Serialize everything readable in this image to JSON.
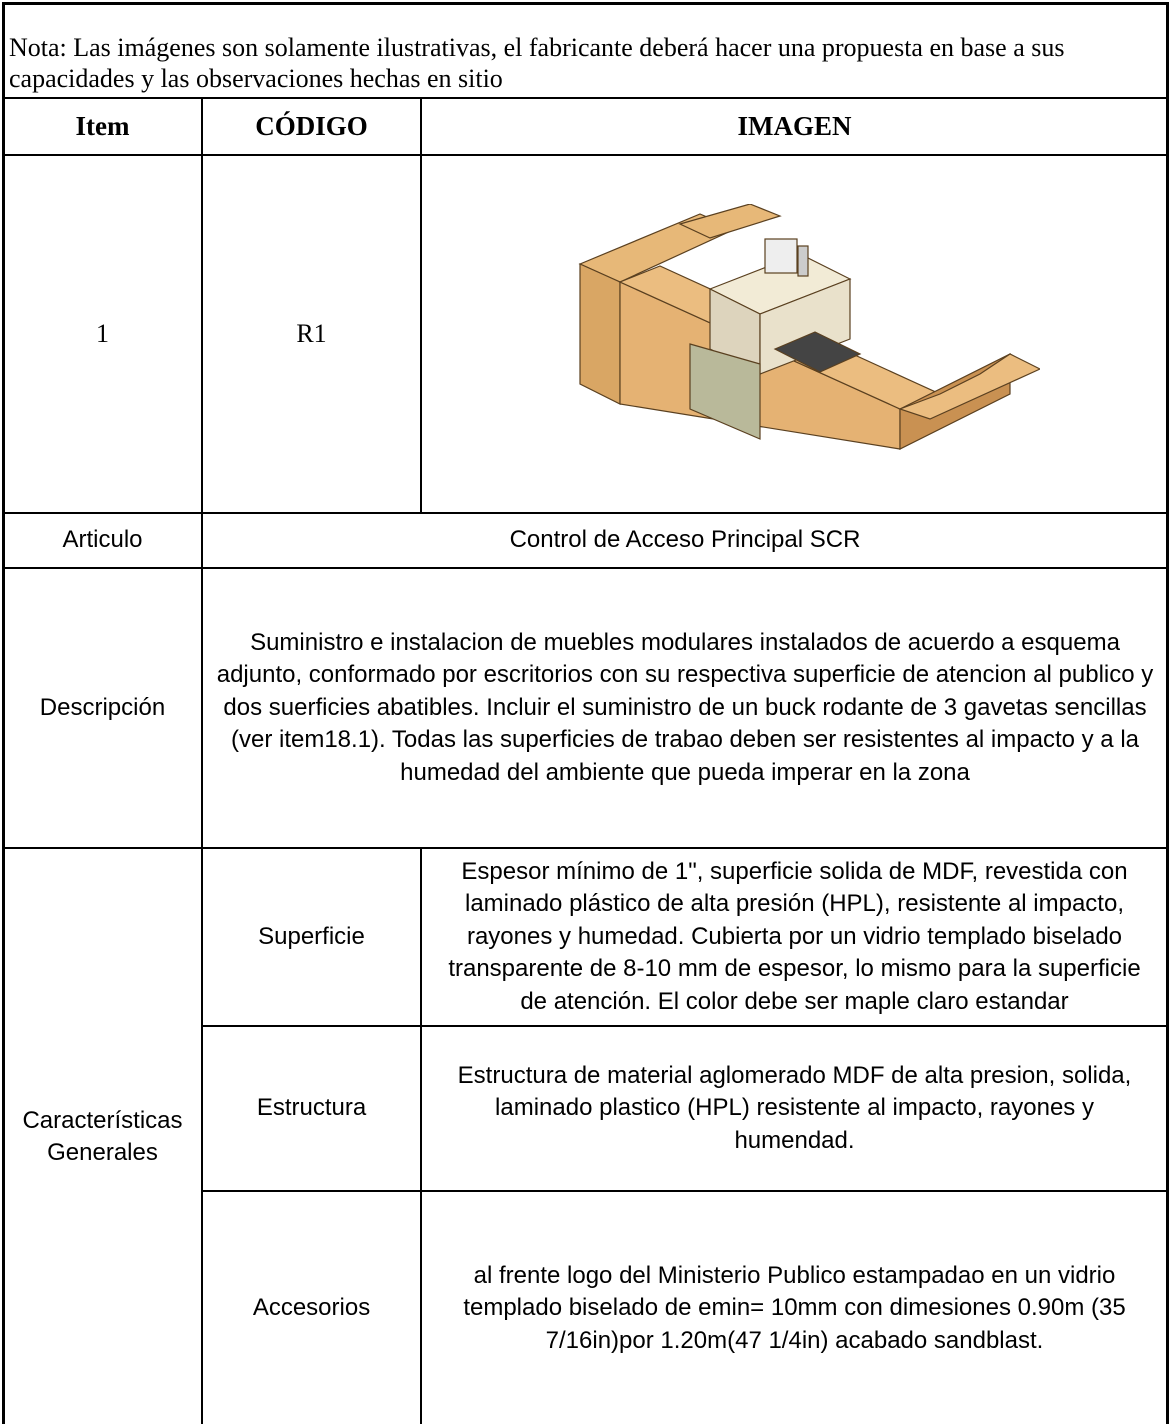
{
  "note": "Nota: Las imágenes son solamente ilustrativas, el fabricante deberá hacer una propuesta en base a sus capacidades y las observaciones hechas en sitio",
  "table": {
    "headers": [
      "Item",
      "CÓDIGO",
      "IMAGEN"
    ],
    "item": {
      "number": "1",
      "code": "R1"
    },
    "articulo": {
      "label": "Articulo",
      "value": "Control de Acceso Principal SCR"
    },
    "descripcion": {
      "label": "Descripción",
      "value": "Suministro e instalacion de muebles modulares instalados de acuerdo a esquema adjunto, conformado por escritorios con su respectiva superficie de atencion al publico y dos suerficies abatibles. Incluir el suministro de un buck rodante de 3 gavetas sencillas (ver item18.1). Todas las superficies de trabao deben ser resistentes al impacto y a la humedad del ambiente que pueda imperar en la zona"
    },
    "caracteristicas": {
      "label": "Características Generales",
      "rows": [
        [
          "Superficie",
          "Espesor mínimo de 1\", superficie solida de MDF, revestida con laminado plástico de alta presión (HPL), resistente al impacto, rayones y humedad. Cubierta por un vidrio templado biselado transparente de 8-10 mm de espesor, lo mismo para la superficie de atención. El color debe ser maple claro estandar"
        ],
        [
          "Estructura",
          "Estructura de material aglomerado MDF de alta presion, solida, laminado plastico (HPL) resistente al impacto, rayones y humendad."
        ],
        [
          "Accesorios",
          "al frente logo del Ministerio Publico estampadao en un vidrio templado biselado de emin= 10mm con dimesiones 0.90m (35 7/16in)por 1.20m(47 1/4in) acabado sandblast."
        ]
      ]
    }
  }
}
